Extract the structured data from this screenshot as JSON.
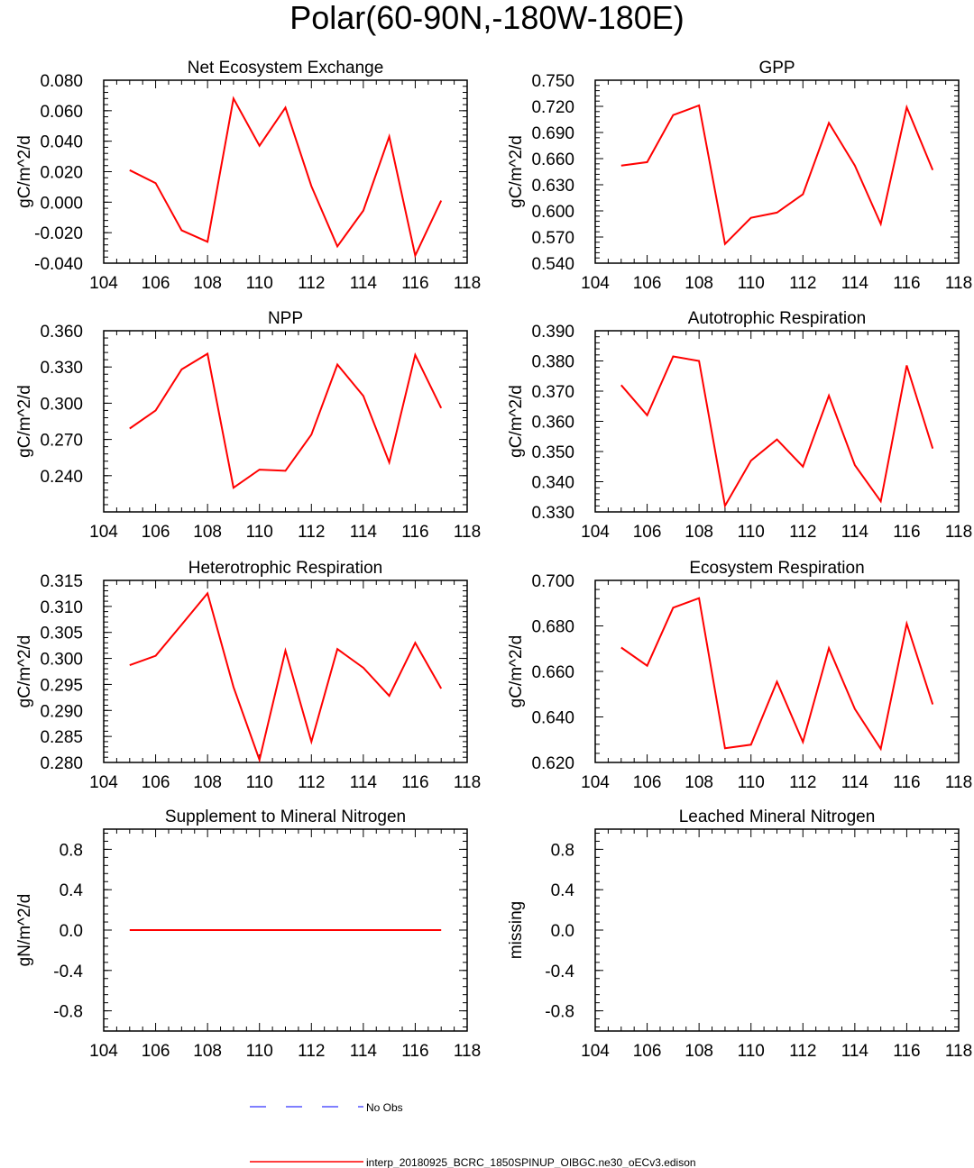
{
  "page": {
    "title": "Polar(60-90N,-180W-180E)"
  },
  "legend": {
    "items": [
      {
        "label": "No Obs",
        "color": "#5555ff",
        "dash": true
      },
      {
        "label": "interp_20180925_BCRC_1850SPINUP_OIBGC.ne30_oECv3.edison",
        "color": "#ff0000",
        "dash": false
      }
    ]
  },
  "chart_data": [
    {
      "type": "line",
      "title": "Net Ecosystem Exchange",
      "ylabel": "gC/m^2/d",
      "xlim": [
        104,
        118
      ],
      "xticks": [
        104,
        106,
        108,
        110,
        112,
        114,
        116,
        118
      ],
      "ylim": [
        -0.04,
        0.08
      ],
      "yticks": [
        "-0.040",
        "-0.020",
        "0.000",
        "0.020",
        "0.040",
        "0.060",
        "0.080"
      ],
      "x": [
        105,
        106,
        107,
        108,
        109,
        110,
        111,
        112,
        113,
        114,
        115,
        116,
        117
      ],
      "series": [
        {
          "color": "#ff0000",
          "values": [
            0.021,
            0.0125,
            -0.0185,
            -0.026,
            0.068,
            0.037,
            0.062,
            0.0105,
            -0.029,
            -0.0055,
            0.043,
            -0.035,
            0.001
          ]
        }
      ]
    },
    {
      "type": "line",
      "title": "GPP",
      "ylabel": "gC/m^2/d",
      "xlim": [
        104,
        118
      ],
      "xticks": [
        104,
        106,
        108,
        110,
        112,
        114,
        116,
        118
      ],
      "ylim": [
        0.54,
        0.75
      ],
      "yticks": [
        "0.540",
        "0.570",
        "0.600",
        "0.630",
        "0.660",
        "0.690",
        "0.720",
        "0.750"
      ],
      "x": [
        105,
        106,
        107,
        108,
        109,
        110,
        111,
        112,
        113,
        114,
        115,
        116,
        117
      ],
      "series": [
        {
          "color": "#ff0000",
          "values": [
            0.652,
            0.656,
            0.71,
            0.721,
            0.562,
            0.592,
            0.598,
            0.619,
            0.701,
            0.652,
            0.585,
            0.719,
            0.647
          ]
        }
      ]
    },
    {
      "type": "line",
      "title": "NPP",
      "ylabel": "gC/m^2/d",
      "xlim": [
        104,
        118
      ],
      "xticks": [
        104,
        106,
        108,
        110,
        112,
        114,
        116,
        118
      ],
      "ylim": [
        0.21,
        0.36
      ],
      "yticks": [
        "0.240",
        "0.270",
        "0.300",
        "0.330",
        "0.360"
      ],
      "x": [
        105,
        106,
        107,
        108,
        109,
        110,
        111,
        112,
        113,
        114,
        115,
        116,
        117
      ],
      "series": [
        {
          "color": "#ff0000",
          "values": [
            0.279,
            0.294,
            0.328,
            0.341,
            0.23,
            0.245,
            0.244,
            0.274,
            0.332,
            0.306,
            0.251,
            0.34,
            0.296
          ]
        }
      ]
    },
    {
      "type": "line",
      "title": "Autotrophic Respiration",
      "ylabel": "gC/m^2/d",
      "xlim": [
        104,
        118
      ],
      "xticks": [
        104,
        106,
        108,
        110,
        112,
        114,
        116,
        118
      ],
      "ylim": [
        0.33,
        0.39
      ],
      "yticks": [
        "0.330",
        "0.340",
        "0.350",
        "0.360",
        "0.370",
        "0.380",
        "0.390"
      ],
      "x": [
        105,
        106,
        107,
        108,
        109,
        110,
        111,
        112,
        113,
        114,
        115,
        116,
        117
      ],
      "series": [
        {
          "color": "#ff0000",
          "values": [
            0.372,
            0.362,
            0.3815,
            0.38,
            0.332,
            0.347,
            0.354,
            0.345,
            0.3685,
            0.3455,
            0.3335,
            0.3785,
            0.351
          ]
        }
      ]
    },
    {
      "type": "line",
      "title": "Heterotrophic Respiration",
      "ylabel": "gC/m^2/d",
      "xlim": [
        104,
        118
      ],
      "xticks": [
        104,
        106,
        108,
        110,
        112,
        114,
        116,
        118
      ],
      "ylim": [
        0.28,
        0.315
      ],
      "yticks": [
        "0.280",
        "0.285",
        "0.290",
        "0.295",
        "0.300",
        "0.305",
        "0.310",
        "0.315"
      ],
      "x": [
        105,
        106,
        107,
        108,
        109,
        110,
        111,
        112,
        113,
        114,
        115,
        116,
        117
      ],
      "series": [
        {
          "color": "#ff0000",
          "values": [
            0.2987,
            0.3005,
            0.3065,
            0.3125,
            0.2945,
            0.2805,
            0.3015,
            0.284,
            0.3018,
            0.2982,
            0.2928,
            0.303,
            0.2942
          ]
        }
      ]
    },
    {
      "type": "line",
      "title": "Ecosystem Respiration",
      "ylabel": "gC/m^2/d",
      "xlim": [
        104,
        118
      ],
      "xticks": [
        104,
        106,
        108,
        110,
        112,
        114,
        116,
        118
      ],
      "ylim": [
        0.62,
        0.7
      ],
      "yticks": [
        "0.620",
        "0.640",
        "0.660",
        "0.680",
        "0.700"
      ],
      "x": [
        105,
        106,
        107,
        108,
        109,
        110,
        111,
        112,
        113,
        114,
        115,
        116,
        117
      ],
      "series": [
        {
          "color": "#ff0000",
          "values": [
            0.6705,
            0.6625,
            0.688,
            0.6922,
            0.6262,
            0.6278,
            0.6555,
            0.629,
            0.6702,
            0.6435,
            0.626,
            0.681,
            0.6455
          ]
        }
      ]
    },
    {
      "type": "line",
      "title": "Supplement to Mineral Nitrogen",
      "ylabel": "gN/m^2/d",
      "xlim": [
        104,
        118
      ],
      "xticks": [
        104,
        106,
        108,
        110,
        112,
        114,
        116,
        118
      ],
      "ylim": [
        -1.0,
        1.0
      ],
      "yticks": [
        "-0.8",
        "-0.4",
        "0.0",
        "0.4",
        "0.8"
      ],
      "x": [
        105,
        106,
        107,
        108,
        109,
        110,
        111,
        112,
        113,
        114,
        115,
        116,
        117
      ],
      "series": [
        {
          "color": "#ff0000",
          "values": [
            0,
            0,
            0,
            0,
            0,
            0,
            0,
            0,
            0,
            0,
            0,
            0,
            0
          ]
        }
      ]
    },
    {
      "type": "line",
      "title": "Leached Mineral Nitrogen",
      "ylabel": "missing",
      "xlim": [
        104,
        118
      ],
      "xticks": [
        104,
        106,
        108,
        110,
        112,
        114,
        116,
        118
      ],
      "ylim": [
        -1.0,
        1.0
      ],
      "yticks": [
        "-0.8",
        "-0.4",
        "0.0",
        "0.4",
        "0.8"
      ],
      "x": [],
      "series": []
    }
  ]
}
